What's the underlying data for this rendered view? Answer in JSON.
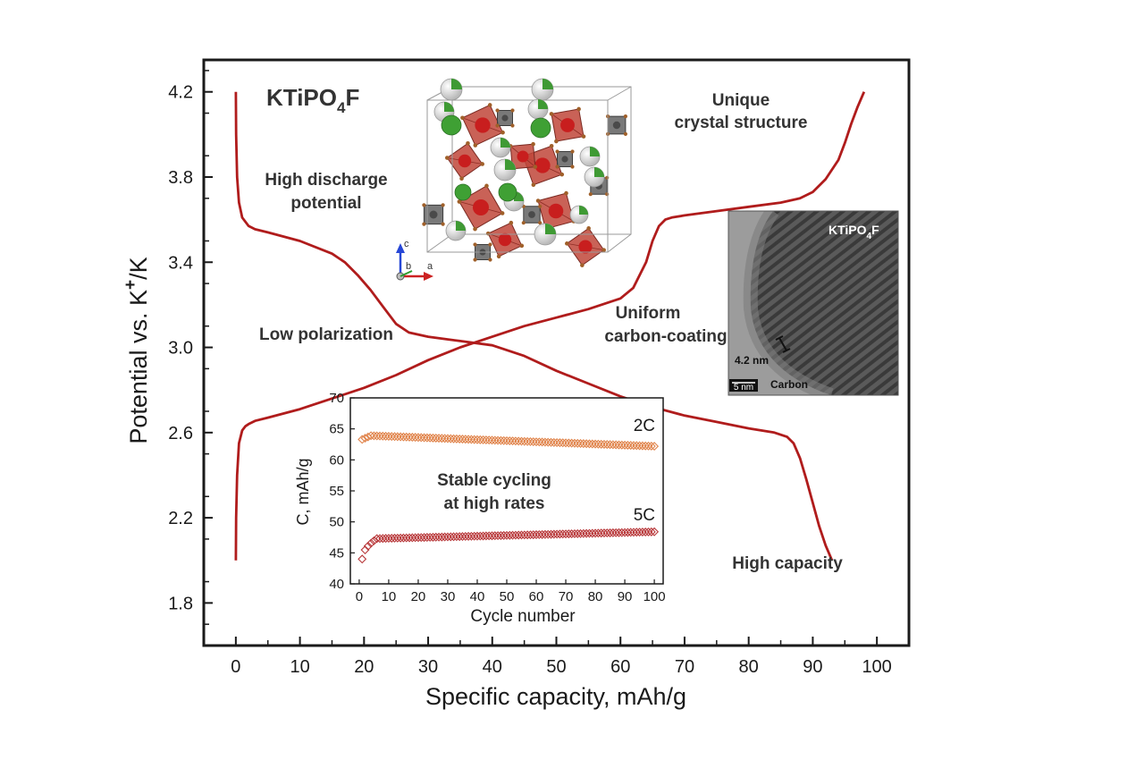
{
  "chart_data": [
    {
      "type": "line",
      "xlabel": "Specific capacity, mAh/g",
      "ylabel_main": "Potential vs. K",
      "ylabel_sup": "+",
      "ylabel_tail": "/K",
      "xlim": [
        -5,
        105
      ],
      "ylim": [
        1.6,
        4.35
      ],
      "x_ticks": [
        0,
        10,
        20,
        30,
        40,
        50,
        60,
        70,
        80,
        90,
        100
      ],
      "y_ticks": [
        1.8,
        2.2,
        2.6,
        3.0,
        3.4,
        3.8,
        4.2
      ],
      "y_tick_labels": [
        "1.8",
        "2.2",
        "2.6",
        "3.0",
        "3.4",
        "3.8",
        "4.2"
      ],
      "line_color": "#b01c1c",
      "series": [
        {
          "x": [
            0,
            0.05,
            0.2,
            0.5,
            1,
            1.5,
            2,
            3,
            5,
            10,
            15,
            20,
            25,
            30,
            35,
            40,
            45,
            50,
            55,
            60,
            62,
            64,
            65,
            66,
            67,
            68,
            70,
            75,
            80,
            85,
            88,
            90,
            92,
            94,
            95,
            96,
            97,
            98
          ],
          "y": [
            2.0,
            2.2,
            2.4,
            2.55,
            2.61,
            2.63,
            2.64,
            2.655,
            2.67,
            2.71,
            2.76,
            2.81,
            2.87,
            2.94,
            3.0,
            3.05,
            3.1,
            3.14,
            3.18,
            3.23,
            3.28,
            3.4,
            3.5,
            3.57,
            3.6,
            3.61,
            3.62,
            3.64,
            3.66,
            3.68,
            3.7,
            3.73,
            3.79,
            3.88,
            3.96,
            4.05,
            4.13,
            4.2
          ]
        },
        {
          "x": [
            0,
            0.05,
            0.2,
            0.5,
            1,
            2,
            3,
            5,
            10,
            15,
            17,
            19,
            21,
            23,
            25,
            27,
            30,
            35,
            40,
            45,
            50,
            55,
            60,
            65,
            70,
            75,
            80,
            84,
            86,
            87,
            88,
            89,
            90,
            91,
            92,
            93
          ],
          "y": [
            4.2,
            4.0,
            3.8,
            3.68,
            3.61,
            3.57,
            3.555,
            3.54,
            3.5,
            3.44,
            3.4,
            3.34,
            3.27,
            3.19,
            3.11,
            3.07,
            3.05,
            3.03,
            3.01,
            2.96,
            2.89,
            2.83,
            2.77,
            2.72,
            2.68,
            2.65,
            2.62,
            2.6,
            2.58,
            2.55,
            2.48,
            2.38,
            2.27,
            2.16,
            2.07,
            2.0
          ]
        }
      ]
    },
    {
      "type": "scatter",
      "xlabel": "Cycle number",
      "ylabel": "C, mAh/g",
      "xlim": [
        -3,
        103
      ],
      "ylim": [
        40,
        70
      ],
      "x_ticks": [
        0,
        10,
        20,
        30,
        40,
        50,
        60,
        70,
        80,
        90,
        100
      ],
      "y_ticks": [
        40,
        45,
        50,
        55,
        60,
        65,
        70
      ],
      "series": [
        {
          "name": "2C",
          "color": "#e0834a",
          "start": 63.3,
          "peak": 63.9,
          "end": 62.2
        },
        {
          "name": "5C",
          "color": "#b8383a",
          "start": 44.0,
          "peak": 47.3,
          "end": 48.4
        }
      ]
    }
  ],
  "annotations": {
    "formula_main": "KTiPO",
    "formula_sub": "4",
    "formula_tail": "F",
    "high_discharge_line1": "High discharge",
    "high_discharge_line2": "potential",
    "unique_line1": "Unique",
    "unique_line2": "crystal structure",
    "low_polarization": "Low polarization",
    "uniform_line1": "Uniform",
    "uniform_line2": "carbon-coating",
    "high_capacity": "High capacity",
    "stable_line1": "Stable cycling",
    "stable_line2": "at high rates"
  },
  "crystal": {
    "axis_c": "c",
    "axis_b": "b",
    "axis_a": "a"
  },
  "tem": {
    "formula_main": "KTiPO",
    "formula_sub": "4",
    "formula_tail": "F",
    "thickness": "4.2 nm",
    "scale_bar": "5 nm",
    "carbon": "Carbon"
  }
}
